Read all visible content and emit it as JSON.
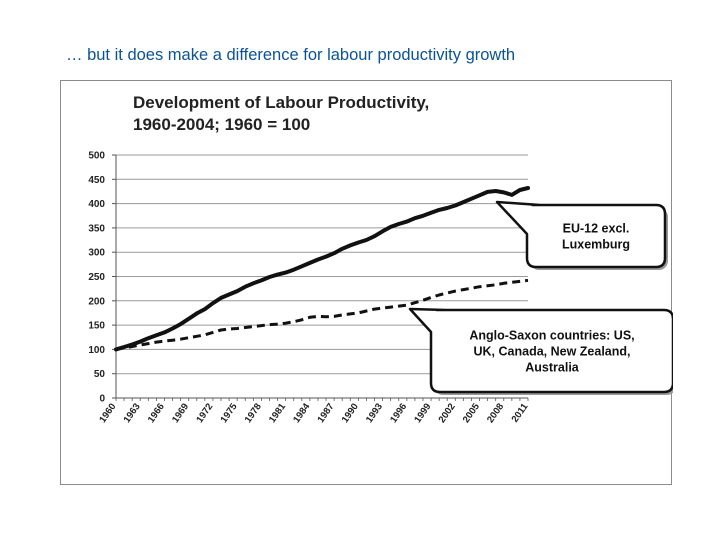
{
  "slide": {
    "title": "… but it does make a difference for labour productivity growth"
  },
  "chart_data": {
    "type": "line",
    "title": [
      "Development of Labour Productivity,",
      "1960-2004; 1960 = 100"
    ],
    "xlabel": "",
    "ylabel": "",
    "ylim": [
      0,
      500
    ],
    "yticks": [
      0,
      50,
      100,
      150,
      200,
      250,
      300,
      350,
      400,
      450,
      500
    ],
    "xlim": [
      1960,
      2011
    ],
    "xticks": [
      1960,
      1963,
      1966,
      1969,
      1972,
      1975,
      1978,
      1981,
      1984,
      1987,
      1990,
      1993,
      1996,
      1999,
      2002,
      2005,
      2008,
      2011
    ],
    "grid": "horizontal",
    "series": [
      {
        "style": "solid",
        "color": "#111111",
        "x": [
          1960,
          1961,
          1962,
          1963,
          1964,
          1965,
          1966,
          1967,
          1968,
          1969,
          1970,
          1971,
          1972,
          1973,
          1974,
          1975,
          1976,
          1977,
          1978,
          1979,
          1980,
          1981,
          1982,
          1983,
          1984,
          1985,
          1986,
          1987,
          1988,
          1989,
          1990,
          1991,
          1992,
          1993,
          1994,
          1995,
          1996,
          1997,
          1998,
          1999,
          2000,
          2001,
          2002,
          2003,
          2004,
          2005,
          2006,
          2007,
          2008,
          2009,
          2010,
          2011
        ],
        "values": [
          100,
          105,
          110,
          116,
          123,
          129,
          135,
          143,
          152,
          163,
          174,
          183,
          195,
          206,
          213,
          220,
          229,
          236,
          242,
          249,
          254,
          258,
          264,
          271,
          278,
          285,
          291,
          298,
          307,
          314,
          320,
          325,
          333,
          343,
          352,
          358,
          363,
          370,
          375,
          381,
          387,
          391,
          396,
          403,
          410,
          417,
          424,
          426,
          423,
          418,
          428,
          432
        ]
      },
      {
        "style": "dashed",
        "color": "#111111",
        "x": [
          1960,
          1961,
          1962,
          1963,
          1964,
          1965,
          1966,
          1967,
          1968,
          1969,
          1970,
          1971,
          1972,
          1973,
          1974,
          1975,
          1976,
          1977,
          1978,
          1979,
          1980,
          1981,
          1982,
          1983,
          1984,
          1985,
          1986,
          1987,
          1988,
          1989,
          1990,
          1991,
          1992,
          1993,
          1994,
          1995,
          1996,
          1997,
          1998,
          1999,
          2000,
          2001,
          2002,
          2003,
          2004,
          2005,
          2006,
          2007,
          2008,
          2009,
          2010,
          2011
        ],
        "values": [
          100,
          103,
          106,
          109,
          112,
          115,
          117,
          119,
          121,
          124,
          127,
          130,
          135,
          140,
          142,
          143,
          145,
          147,
          149,
          151,
          152,
          154,
          157,
          161,
          166,
          168,
          167,
          168,
          171,
          173,
          175,
          179,
          183,
          185,
          187,
          189,
          191,
          196,
          201,
          207,
          212,
          216,
          220,
          223,
          226,
          229,
          231,
          233,
          236,
          238,
          240,
          242
        ]
      }
    ],
    "annotations": [
      {
        "target_series": 0,
        "lines": [
          "EU-12 excl.",
          "Luxemburg"
        ]
      },
      {
        "target_series": 1,
        "lines": [
          "Anglo-Saxon countries: US,",
          "UK, Canada, New Zealand,",
          "Australia"
        ]
      }
    ]
  }
}
